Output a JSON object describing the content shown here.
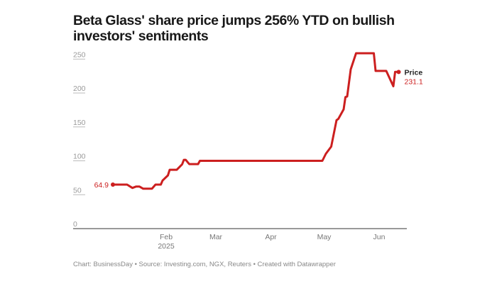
{
  "chart_data": {
    "type": "line",
    "title": "Beta Glass' share price jumps 256% YTD on bullish investors' sentiments",
    "xlabel": "",
    "ylabel": "",
    "ylim": [
      0,
      250
    ],
    "yticks": [
      "0",
      "50",
      "100",
      "150",
      "200",
      "250"
    ],
    "xticks": [
      {
        "date": "2025-02-01",
        "label": "Feb",
        "sublabel": "2025"
      },
      {
        "date": "2025-03-01",
        "label": "Mar"
      },
      {
        "date": "2025-04-01",
        "label": "Apr"
      },
      {
        "date": "2025-05-01",
        "label": "May"
      },
      {
        "date": "2025-06-01",
        "label": "Jun"
      }
    ],
    "series": [
      {
        "name": "Price",
        "color": "#cc1f1f",
        "start_label": "64.9",
        "end_label": "231.1",
        "points": [
          [
            "2025-01-02",
            64.9
          ],
          [
            "2025-01-10",
            64.9
          ],
          [
            "2025-01-13",
            60
          ],
          [
            "2025-01-15",
            62
          ],
          [
            "2025-01-17",
            62
          ],
          [
            "2025-01-19",
            59
          ],
          [
            "2025-01-24",
            59
          ],
          [
            "2025-01-26",
            64.9
          ],
          [
            "2025-01-29",
            64.9
          ],
          [
            "2025-01-30",
            71
          ],
          [
            "2025-02-02",
            78.5
          ],
          [
            "2025-02-03",
            86.8
          ],
          [
            "2025-02-07",
            86.8
          ],
          [
            "2025-02-10",
            94.8
          ],
          [
            "2025-02-11",
            101.5
          ],
          [
            "2025-02-12",
            101.5
          ],
          [
            "2025-02-14",
            95.2
          ],
          [
            "2025-02-19",
            95.2
          ],
          [
            "2025-02-20",
            100
          ],
          [
            "2025-04-30",
            100
          ],
          [
            "2025-05-02",
            110.5
          ],
          [
            "2025-05-05",
            121
          ],
          [
            "2025-05-08",
            160
          ],
          [
            "2025-05-09",
            161.8
          ],
          [
            "2025-05-12",
            176
          ],
          [
            "2025-05-13",
            194
          ],
          [
            "2025-05-14",
            195
          ],
          [
            "2025-05-16",
            235
          ],
          [
            "2025-05-19",
            258.7
          ],
          [
            "2025-05-29",
            258.7
          ],
          [
            "2025-05-30",
            232.6
          ],
          [
            "2025-06-05",
            232.6
          ],
          [
            "2025-06-09",
            210
          ],
          [
            "2025-06-10",
            231.1
          ],
          [
            "2025-06-12",
            231.1
          ]
        ]
      }
    ]
  },
  "footer": "Chart: BusinessDay • Source: Investing.com, NGX, Reuters • Created with Datawrapper"
}
